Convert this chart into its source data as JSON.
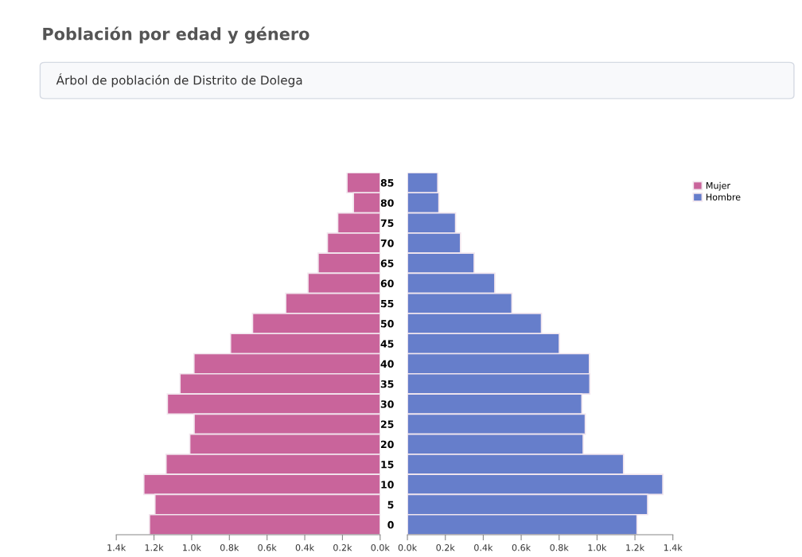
{
  "chart_data": [
    {
      "type": "bar",
      "orientation": "horizontal",
      "title": "Población por edad y género",
      "subtitle": "Árbol de población de Distrito de Dolega",
      "categories": [
        "85",
        "80",
        "75",
        "70",
        "65",
        "60",
        "55",
        "50",
        "45",
        "40",
        "35",
        "30",
        "25",
        "20",
        "15",
        "10",
        "5",
        "0"
      ],
      "series": [
        {
          "name": "Mujer",
          "color": "#c9649b",
          "values": [
            176,
            142,
            225,
            280,
            329,
            383,
            501,
            677,
            794,
            988,
            1062,
            1129,
            987,
            1010,
            1136,
            1254,
            1195,
            1224
          ]
        }
      ],
      "xlim": [
        1400,
        0
      ],
      "xticks": [
        {
          "value": 1400,
          "label": "1.4k"
        },
        {
          "value": 1200,
          "label": "1.2k"
        },
        {
          "value": 1000,
          "label": "1.0k"
        },
        {
          "value": 800,
          "label": "0.8k"
        },
        {
          "value": 600,
          "label": "0.6k"
        },
        {
          "value": 400,
          "label": "0.4k"
        },
        {
          "value": 200,
          "label": "0.2k"
        },
        {
          "value": 0,
          "label": "0.0k"
        }
      ],
      "tick_labels": "x",
      "grid": false,
      "legend": "top right"
    },
    {
      "type": "bar",
      "orientation": "horizontal",
      "categories": [
        "85",
        "80",
        "75",
        "70",
        "65",
        "60",
        "55",
        "50",
        "45",
        "40",
        "35",
        "30",
        "25",
        "20",
        "15",
        "10",
        "5",
        "0"
      ],
      "series": [
        {
          "name": "Hombre",
          "color": "#667ecb",
          "values": [
            160,
            166,
            254,
            280,
            352,
            461,
            551,
            707,
            801,
            960,
            962,
            920,
            938,
            927,
            1140,
            1347,
            1267,
            1211
          ]
        }
      ],
      "xlim": [
        0,
        1400
      ],
      "xticks": [
        {
          "value": 0,
          "label": "0.0k"
        },
        {
          "value": 200,
          "label": "0.2k"
        },
        {
          "value": 400,
          "label": "0.4k"
        },
        {
          "value": 600,
          "label": "0.6k"
        },
        {
          "value": 800,
          "label": "0.8k"
        },
        {
          "value": 1000,
          "label": "1.0k"
        },
        {
          "value": 1200,
          "label": "1.2k"
        },
        {
          "value": 1400,
          "label": "1.4k"
        }
      ],
      "grid": false,
      "legend": "top right"
    }
  ]
}
